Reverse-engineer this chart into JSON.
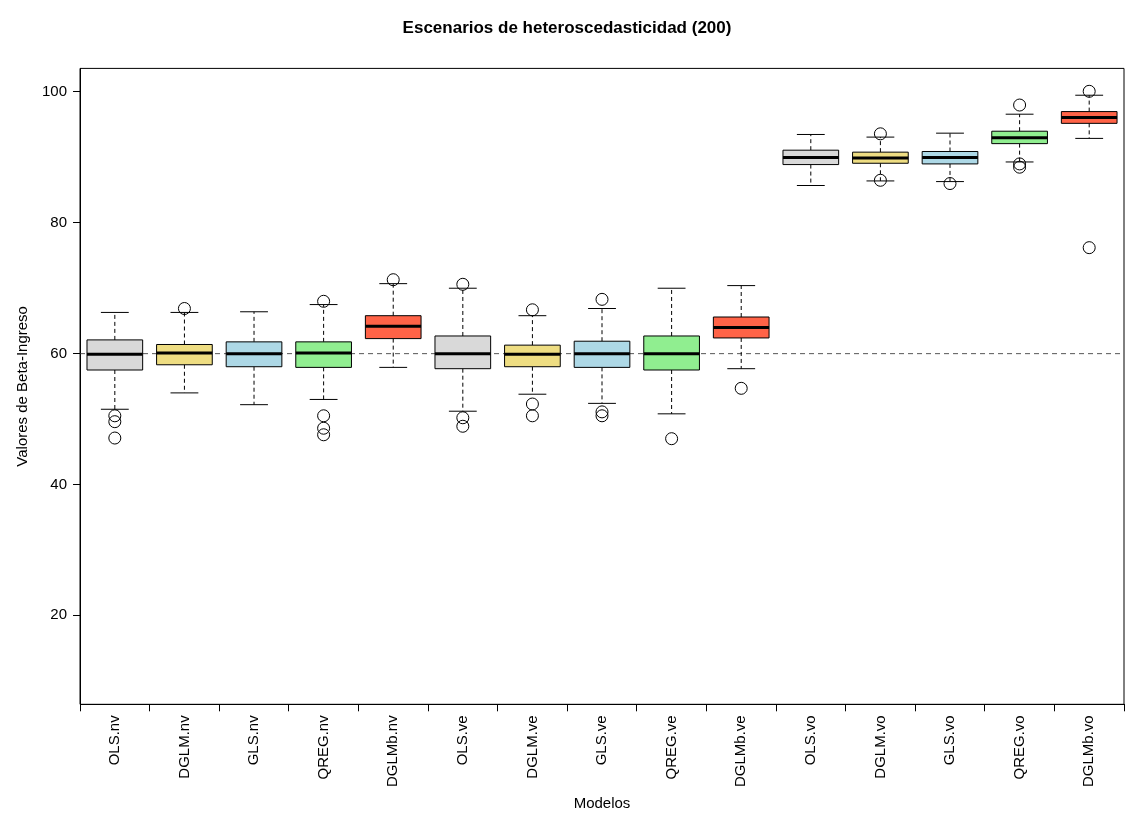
{
  "chart_data": {
    "type": "box",
    "title": "Escenarios de heteroscedasticidad (200)",
    "xlabel": "Modelos",
    "ylabel": "Valores de Beta-Ingreso",
    "categories": [
      "OLS.nv",
      "DGLM.nv",
      "GLS.nv",
      "QREG.nv",
      "DGLMb.nv",
      "OLS.ve",
      "DGLM.ve",
      "GLS.ve",
      "QREG.ve",
      "DGLMb.ve",
      "OLS.vo",
      "DGLM.vo",
      "GLS.vo",
      "QREG.vo",
      "DGLMb.vo"
    ],
    "colors": [
      "#d9d9d9",
      "#eedd82",
      "#add8e6",
      "#90ee90",
      "#ff6347",
      "#d9d9d9",
      "#eedd82",
      "#add8e6",
      "#90ee90",
      "#ff6347",
      "#d9d9d9",
      "#eedd82",
      "#add8e6",
      "#90ee90",
      "#ff6347"
    ],
    "boxes": [
      {
        "low": 51.5,
        "q1": 57.5,
        "median": 59.9,
        "q3": 62.1,
        "high": 66.3,
        "outliers": [
          50.5,
          49.6,
          47.1
        ]
      },
      {
        "low": 54.0,
        "q1": 58.3,
        "median": 60.1,
        "q3": 61.4,
        "high": 66.3,
        "outliers": [
          66.9
        ]
      },
      {
        "low": 52.2,
        "q1": 58.0,
        "median": 60.0,
        "q3": 61.8,
        "high": 66.4
      },
      {
        "low": 53.0,
        "q1": 57.9,
        "median": 60.1,
        "q3": 61.8,
        "high": 67.5,
        "outliers": [
          68.0,
          50.5,
          48.6,
          47.6
        ]
      },
      {
        "low": 57.9,
        "q1": 62.3,
        "median": 64.2,
        "q3": 65.8,
        "high": 70.7,
        "outliers": [
          71.3
        ]
      },
      {
        "low": 51.2,
        "q1": 57.7,
        "median": 60.0,
        "q3": 62.7,
        "high": 70.0,
        "outliers": [
          70.6,
          50.2,
          48.9
        ]
      },
      {
        "low": 53.8,
        "q1": 58.0,
        "median": 59.9,
        "q3": 61.3,
        "high": 65.8,
        "outliers": [
          66.7,
          52.3,
          50.5
        ]
      },
      {
        "low": 52.4,
        "q1": 57.9,
        "median": 60.0,
        "q3": 61.9,
        "high": 66.9,
        "outliers": [
          68.3,
          51.1,
          50.5
        ]
      },
      {
        "low": 50.8,
        "q1": 57.5,
        "median": 60.0,
        "q3": 62.7,
        "high": 70.0,
        "outliers": [
          47.0
        ]
      },
      {
        "low": 57.7,
        "q1": 62.4,
        "median": 64.0,
        "q3": 65.6,
        "high": 70.4,
        "outliers": [
          54.7
        ]
      },
      {
        "low": 85.7,
        "q1": 88.9,
        "median": 90.0,
        "q3": 91.1,
        "high": 93.5
      },
      {
        "low": 86.4,
        "q1": 89.1,
        "median": 89.9,
        "q3": 90.8,
        "high": 93.1,
        "outliers": [
          93.6,
          86.5
        ]
      },
      {
        "low": 86.3,
        "q1": 89.0,
        "median": 90.0,
        "q3": 90.9,
        "high": 93.7,
        "outliers": [
          86.0
        ]
      },
      {
        "low": 89.3,
        "q1": 92.1,
        "median": 93.0,
        "q3": 94.0,
        "high": 96.6,
        "outliers": [
          98.0,
          89.0,
          88.5
        ]
      },
      {
        "low": 92.9,
        "q1": 95.2,
        "median": 96.1,
        "q3": 97.0,
        "high": 99.5,
        "outliers": [
          100.1,
          76.2
        ]
      }
    ],
    "ylim": [
      6.4,
      103.6
    ],
    "yticks": [
      20,
      40,
      60,
      80,
      100
    ],
    "ref_lines": [
      {
        "axis": "y",
        "value": 60,
        "line_style": "dashed"
      }
    ],
    "grid": false,
    "legend": false
  }
}
